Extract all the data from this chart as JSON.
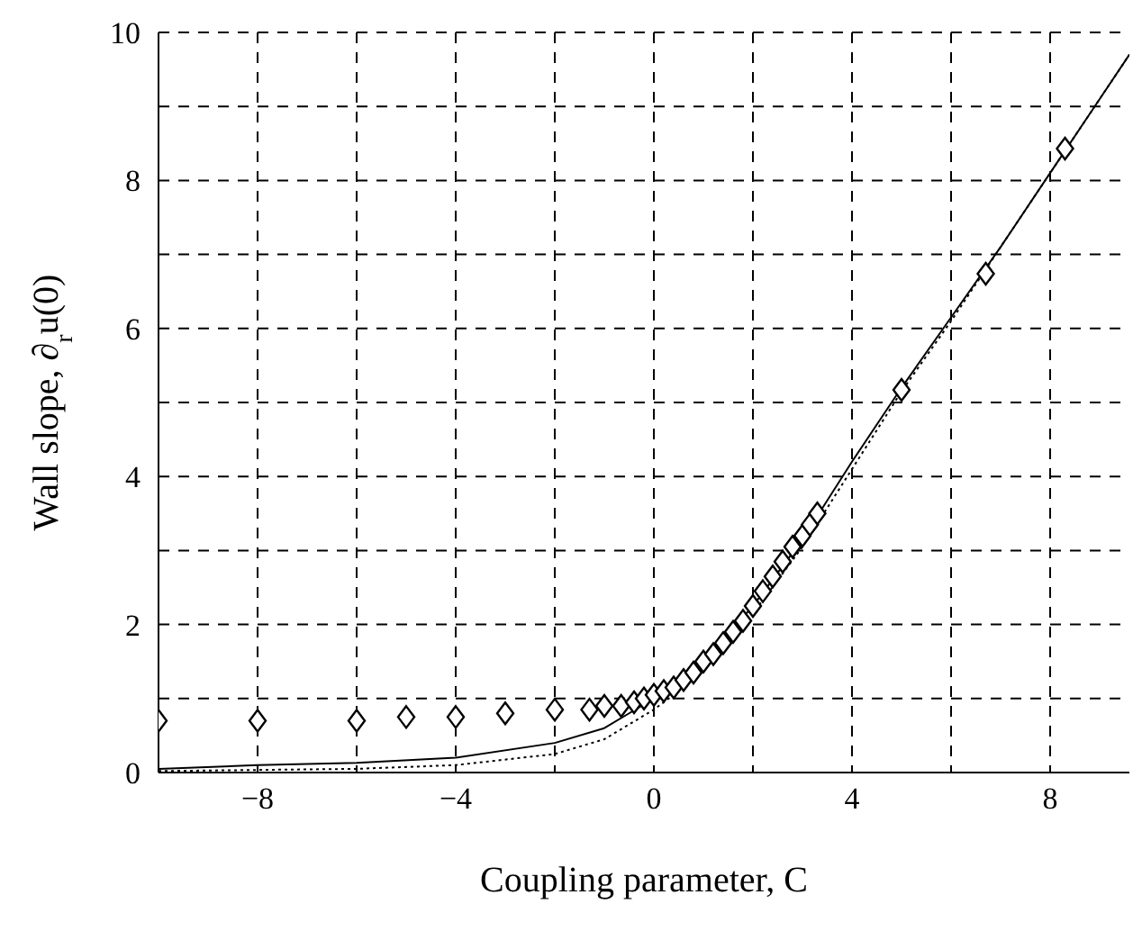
{
  "chart_data": {
    "type": "line",
    "xlabel": "Coupling parameter, C",
    "ylabel": "Wall slope, ∂$_{r}$u(0)",
    "xlim": [
      -10,
      9.6
    ],
    "ylim": [
      0,
      10
    ],
    "xticks": [
      {
        "value": -10,
        "label": null
      },
      -8,
      {
        "value": -6,
        "label": null
      },
      -4,
      {
        "value": -2,
        "label": null
      },
      0,
      {
        "value": 2,
        "label": null
      },
      4,
      {
        "value": 6,
        "label": null
      },
      8
    ],
    "yticks": [
      0,
      {
        "value": 1,
        "label": null
      },
      2,
      {
        "value": 3,
        "label": null
      },
      4,
      {
        "value": 5,
        "label": null
      },
      6,
      {
        "value": 7,
        "label": null
      },
      8,
      {
        "value": 9,
        "label": null
      },
      10
    ],
    "grid": true,
    "series": [
      {
        "color": "#000000",
        "line_style": "solid",
        "marker": "none",
        "x": [
          -10,
          -8,
          -6,
          -4,
          -2,
          -1,
          -0.5,
          0,
          0.5,
          1,
          2,
          3,
          4,
          5,
          6,
          7,
          8,
          9,
          9.6
        ],
        "values": [
          0.05,
          0.1,
          0.13,
          0.2,
          0.4,
          0.6,
          0.8,
          1.0,
          1.2,
          1.5,
          2.25,
          3.15,
          4.2,
          5.2,
          6.15,
          7.1,
          8.1,
          9.1,
          9.7
        ]
      },
      {
        "color": "#000000",
        "line_style": "dotted",
        "marker": "none",
        "x": [
          -10,
          -6,
          -4,
          -2,
          -1,
          0,
          0.5,
          1,
          2,
          3,
          4,
          5,
          6,
          8,
          9.6
        ],
        "values": [
          0.02,
          0.05,
          0.1,
          0.25,
          0.45,
          0.85,
          1.1,
          1.4,
          2.15,
          3.05,
          4.1,
          5.15,
          6.1,
          8.1,
          9.7
        ]
      },
      {
        "type": "scatter",
        "color": "#000000",
        "marker": "diamond",
        "x": [
          -10,
          -8,
          -6,
          -5,
          -4,
          -3,
          -2,
          -1.3,
          -1,
          -0.66,
          -0.4,
          -0.2,
          0,
          0.2,
          0.4,
          0.6,
          0.8,
          1,
          1.2,
          1.4,
          1.6,
          1.8,
          2,
          2.2,
          2.4,
          2.6,
          2.8,
          3,
          3.15,
          3.3,
          5,
          6.7,
          8.3
        ],
        "values": [
          0.7,
          0.7,
          0.7,
          0.75,
          0.75,
          0.8,
          0.85,
          0.85,
          0.9,
          0.9,
          0.95,
          1.0,
          1.05,
          1.1,
          1.15,
          1.25,
          1.35,
          1.5,
          1.6,
          1.75,
          1.9,
          2.05,
          2.25,
          2.45,
          2.65,
          2.85,
          3.05,
          3.2,
          3.35,
          3.5,
          5.17,
          6.74,
          8.43
        ]
      }
    ]
  }
}
